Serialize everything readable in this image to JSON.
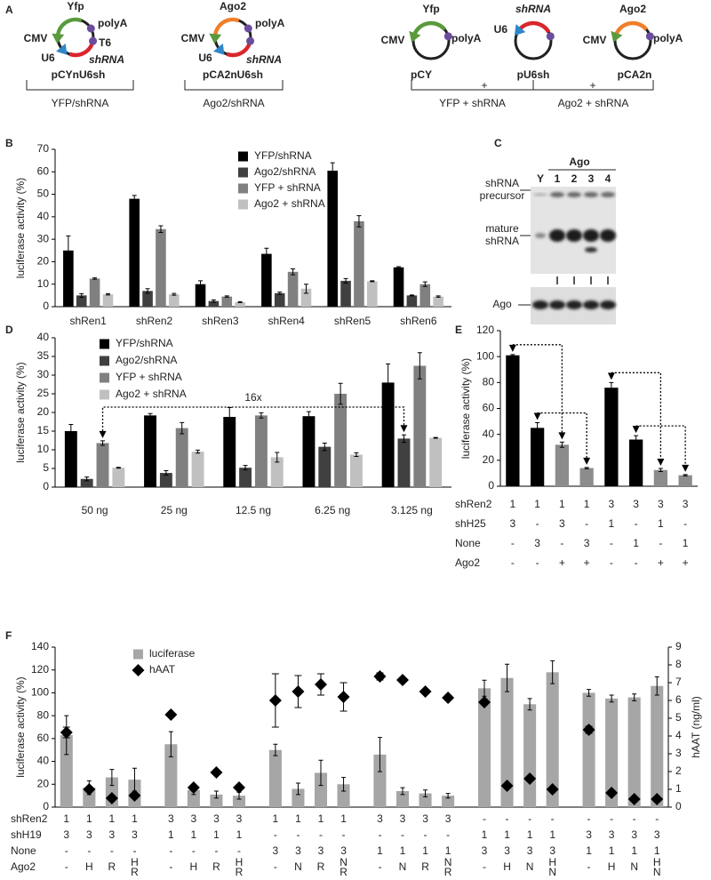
{
  "panel_labels": [
    "A",
    "B",
    "C",
    "D",
    "E",
    "F"
  ],
  "diagram": {
    "plasmids": [
      {
        "name": "pCYnU6sh",
        "gene": "Yfp",
        "promoter": "CMV",
        "polyA": "polyA",
        "terminator": "T6",
        "u6": "U6",
        "shRNA": "shRNA"
      },
      {
        "name": "pCA2nU6sh",
        "gene": "Ago2",
        "promoter": "CMV",
        "polyA": "polyA",
        "u6": "U6",
        "shRNA": "shRNA"
      },
      {
        "name": "pCY",
        "gene": "Yfp",
        "promoter": "CMV",
        "polyA": "polyA"
      },
      {
        "name": "pU6sh",
        "u6": "U6",
        "shRNA": "shRNA"
      },
      {
        "name": "pCA2n",
        "gene": "Ago2",
        "promoter": "CMV",
        "polyA": "polyA"
      }
    ],
    "plus": [
      "+",
      "+"
    ],
    "groups": [
      "YFP/shRNA",
      "Ago2/shRNA",
      "YFP + shRNA",
      "Ago2 + shRNA"
    ]
  },
  "blot": {
    "title": "Ago",
    "lanes": [
      "Y",
      "1",
      "2",
      "3",
      "4"
    ],
    "bands": [
      [
        "shRNA",
        "precursor"
      ],
      [
        "mature",
        "shRNA"
      ]
    ],
    "loading": "Ago"
  },
  "chart_data": [
    {
      "type": "bar",
      "ylabel": "luciferase activity (%)",
      "categories": [
        "shRen1",
        "shRen2",
        "shRen3",
        "shRen4",
        "shRen5",
        "shRen6"
      ],
      "ylim": [
        0,
        70
      ],
      "yticks": [
        0,
        10,
        20,
        30,
        40,
        50,
        60,
        70
      ],
      "series": [
        {
          "name": "YFP/shRNA",
          "color": "#000000",
          "values": [
            25,
            48,
            10,
            23.5,
            60.5,
            17.5
          ],
          "errors": [
            6.5,
            1.5,
            1.5,
            2.5,
            3.5,
            0.3
          ]
        },
        {
          "name": "Ago2/shRNA",
          "color": "#404040",
          "values": [
            5,
            7,
            2.5,
            6,
            11.5,
            5
          ],
          "errors": [
            0.8,
            1,
            0.5,
            0.5,
            1,
            0.2
          ]
        },
        {
          "name": "YFP + shRNA",
          "color": "#808080",
          "values": [
            12.5,
            34.5,
            4.5,
            15.5,
            38,
            10
          ],
          "errors": [
            0.3,
            1.5,
            0.3,
            1.3,
            2.5,
            1
          ]
        },
        {
          "name": "Ago2 + shRNA",
          "color": "#c0c0c0",
          "values": [
            5.5,
            5.5,
            2,
            8,
            11.3,
            4.5
          ],
          "errors": [
            0.3,
            0.4,
            0.2,
            2,
            0.2,
            0.3
          ]
        }
      ]
    },
    {
      "type": "bar",
      "ylabel": "luciferase activity (%)",
      "categories": [
        "50 ng",
        "25 ng",
        "12.5 ng",
        "6.25 ng",
        "3.125 ng"
      ],
      "ylim": [
        0,
        40
      ],
      "yticks": [
        0,
        5,
        10,
        15,
        20,
        25,
        30,
        35,
        40
      ],
      "annotation": "16x",
      "series": [
        {
          "name": "YFP/shRNA",
          "color": "#000000",
          "values": [
            15,
            19.2,
            18.8,
            19,
            28
          ],
          "errors": [
            1.8,
            0.5,
            2.5,
            1.2,
            5
          ]
        },
        {
          "name": "Ago2/shRNA",
          "color": "#404040",
          "values": [
            2.2,
            3.8,
            5.2,
            10.8,
            13
          ],
          "errors": [
            0.5,
            0.6,
            0.6,
            1,
            1
          ]
        },
        {
          "name": "YFP + shRNA",
          "color": "#808080",
          "values": [
            11.8,
            15.8,
            19.2,
            25,
            32.5
          ],
          "errors": [
            0.6,
            1.5,
            0.7,
            2.8,
            3.5
          ]
        },
        {
          "name": "Ago2 + shRNA",
          "color": "#c0c0c0",
          "values": [
            5.2,
            9.5,
            8,
            8.7,
            13.2
          ],
          "errors": [
            0.1,
            0.4,
            1.3,
            0.5,
            0.1
          ]
        }
      ]
    },
    {
      "type": "bar",
      "ylabel": "luciferase activity (%)",
      "ylim": [
        0,
        120
      ],
      "yticks": [
        0,
        20,
        40,
        60,
        80,
        100,
        120
      ],
      "values": [
        101,
        45,
        32,
        14,
        76,
        36,
        12.5,
        8.5
      ],
      "errors": [
        0.6,
        4,
        2,
        0.5,
        4,
        3,
        1.2,
        0.5
      ],
      "colors": [
        "#000000",
        "#000000",
        "#8c8c8c",
        "#8c8c8c",
        "#000000",
        "#000000",
        "#8c8c8c",
        "#8c8c8c"
      ],
      "rows": [
        {
          "label": "shRen2",
          "cells": [
            "1",
            "1",
            "1",
            "1",
            "3",
            "3",
            "3",
            "3"
          ]
        },
        {
          "label": "shH25",
          "cells": [
            "3",
            "-",
            "3",
            "-",
            "1",
            "-",
            "1",
            "-"
          ]
        },
        {
          "label": "None",
          "cells": [
            "-",
            "3",
            "-",
            "3",
            "-",
            "1",
            "-",
            "1"
          ]
        },
        {
          "label": "Ago2",
          "cells": [
            "-",
            "-",
            "+",
            "+",
            "-",
            "-",
            "+",
            "+"
          ]
        }
      ]
    },
    {
      "type": "bar",
      "ylabel": "luciferase activity (%)",
      "y2label": "hAAT (ng/ml)",
      "ylim": [
        0,
        140
      ],
      "yticks": [
        0,
        20,
        40,
        60,
        80,
        100,
        120,
        140
      ],
      "y2lim": [
        0,
        9
      ],
      "y2ticks": [
        0,
        1,
        2,
        3,
        4,
        5,
        6,
        7,
        8,
        9
      ],
      "series": [
        {
          "name": "luciferase",
          "type": "bar",
          "color": "#a6a6a6",
          "values": [
            63,
            17,
            26,
            24,
            55,
            15,
            11,
            10,
            50,
            16,
            30,
            20,
            46,
            14,
            12,
            10,
            104,
            113,
            90,
            118,
            100,
            95,
            96,
            106
          ],
          "errors": [
            17,
            6,
            7,
            10,
            11,
            4,
            3,
            3,
            5,
            5,
            11,
            6,
            15,
            3,
            3,
            2,
            7,
            12,
            5,
            10,
            3,
            3,
            3,
            8
          ]
        },
        {
          "name": "hAAT",
          "type": "scatter",
          "axis": "y2",
          "color": "#000000",
          "values": [
            4.2,
            1.0,
            0.5,
            0.65,
            5.2,
            1.1,
            1.95,
            1.1,
            6.0,
            6.5,
            6.9,
            6.2,
            7.35,
            7.15,
            6.5,
            6.15,
            5.9,
            1.2,
            1.6,
            1.0,
            4.35,
            0.8,
            0.45,
            0.45
          ],
          "errors": [
            0.3,
            null,
            null,
            null,
            null,
            null,
            null,
            null,
            1.5,
            0.9,
            0.6,
            0.8,
            0.2,
            null,
            null,
            null,
            null,
            null,
            null,
            null,
            0.2,
            null,
            null,
            null
          ]
        }
      ],
      "rows": [
        {
          "label": "shRen2",
          "cells": [
            "1",
            "1",
            "1",
            "1",
            "3",
            "3",
            "3",
            "3",
            "1",
            "1",
            "1",
            "1",
            "3",
            "3",
            "3",
            "3",
            "-",
            "-",
            "-",
            "-",
            "-",
            "-",
            "-",
            "-"
          ]
        },
        {
          "label": "shH19",
          "cells": [
            "3",
            "3",
            "3",
            "3",
            "1",
            "1",
            "1",
            "1",
            "-",
            "-",
            "-",
            "-",
            "-",
            "-",
            "-",
            "-",
            "1",
            "1",
            "1",
            "1",
            "3",
            "3",
            "3",
            "3"
          ]
        },
        {
          "label": "None",
          "cells": [
            "-",
            "-",
            "-",
            "-",
            "-",
            "-",
            "-",
            "-",
            "3",
            "3",
            "3",
            "3",
            "1",
            "1",
            "1",
            "1",
            "3",
            "3",
            "3",
            "3",
            "1",
            "1",
            "1",
            "1"
          ]
        },
        {
          "label": "Ago2",
          "cells": [
            "-",
            "H",
            "R",
            [
              "H",
              "R"
            ],
            "-",
            "H",
            "R",
            [
              "H",
              "R"
            ],
            "-",
            "N",
            "R",
            [
              "N",
              "R"
            ],
            "-",
            "N",
            "R",
            [
              "N",
              "R"
            ],
            "-",
            "H",
            "N",
            [
              "H",
              "N"
            ],
            "-",
            "H",
            "N",
            [
              "H",
              "N"
            ]
          ]
        }
      ]
    }
  ]
}
